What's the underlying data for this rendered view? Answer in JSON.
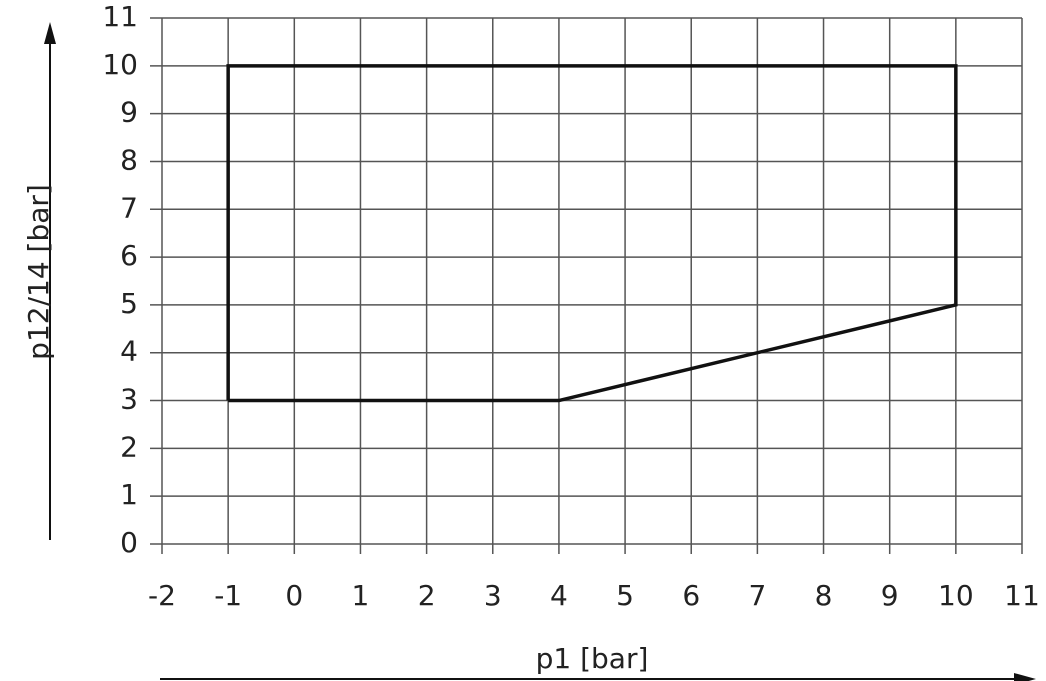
{
  "chart_data": {
    "type": "line",
    "x_label": "p1 [bar]",
    "y_label": "p12/14 [bar]",
    "x": [
      -1,
      -1,
      10,
      10,
      4,
      -1
    ],
    "values": [
      3,
      10,
      10,
      5,
      3,
      3
    ],
    "color": "#111111",
    "xlim": [
      -2,
      11
    ],
    "xticks": [
      -2,
      -1,
      0,
      1,
      2,
      3,
      4,
      5,
      6,
      7,
      8,
      9,
      10,
      11
    ],
    "ylim": [
      0,
      11
    ],
    "yticks": [
      0,
      1,
      2,
      3,
      4,
      5,
      6,
      7,
      8,
      9,
      10,
      11
    ],
    "grid": true
  }
}
